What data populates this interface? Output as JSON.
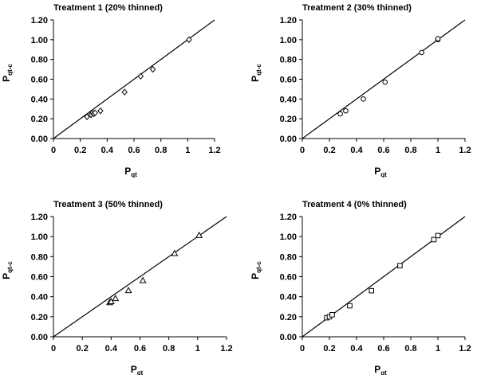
{
  "chart_data": [
    {
      "type": "scatter",
      "title": "Treatment 1 (20% thinned)",
      "xlabel": "P",
      "xlabel_sub": "qt",
      "ylabel": "P",
      "ylabel_sub": "qt-c",
      "xlim": [
        0,
        1.2
      ],
      "ylim": [
        0,
        1.2
      ],
      "xticks": [
        "0",
        "0.2",
        "0.4",
        "0.6",
        "0.8",
        "1",
        "1.2"
      ],
      "yticks": [
        "0.00",
        "0.20",
        "0.40",
        "0.60",
        "0.80",
        "1.00",
        "1.20"
      ],
      "marker": "diamond",
      "reference_line": "1:1",
      "grid": false,
      "x": [
        0.25,
        0.28,
        0.29,
        0.3,
        0.31,
        0.35,
        0.53,
        0.65,
        0.74,
        1.01
      ],
      "y": [
        0.22,
        0.24,
        0.26,
        0.25,
        0.26,
        0.28,
        0.47,
        0.63,
        0.7,
        1.0
      ]
    },
    {
      "type": "scatter",
      "title": "Treatment 2 (30% thinned)",
      "xlabel": "P",
      "xlabel_sub": "qt",
      "ylabel": "P",
      "ylabel_sub": "qt-c",
      "xlim": [
        0,
        1.2
      ],
      "ylim": [
        0,
        1.2
      ],
      "xticks": [
        "0",
        "0.2",
        "0.4",
        "0.6",
        "0.8",
        "1",
        "1.2"
      ],
      "yticks": [
        "0.00",
        "0.20",
        "0.40",
        "0.60",
        "0.80",
        "1.00",
        "1.20"
      ],
      "marker": "circle",
      "reference_line": "1:1",
      "grid": false,
      "x": [
        0.28,
        0.32,
        0.45,
        0.61,
        0.88,
        1.0,
        1.0
      ],
      "y": [
        0.25,
        0.28,
        0.4,
        0.57,
        0.87,
        1.0,
        1.01
      ]
    },
    {
      "type": "scatter",
      "title": "Treatment 3 (50% thinned)",
      "xlabel": "P",
      "xlabel_sub": "qt",
      "ylabel": "P",
      "ylabel_sub": "qt-c",
      "xlim": [
        0,
        1.2
      ],
      "ylim": [
        0,
        1.2
      ],
      "xticks": [
        "0",
        "0.2",
        "0.4",
        "0.6",
        "0.8",
        "1",
        "1.2"
      ],
      "yticks": [
        "0.00",
        "0.20",
        "0.40",
        "0.60",
        "0.80",
        "1.00",
        "1.20"
      ],
      "marker": "triangle",
      "reference_line": "1:1",
      "grid": false,
      "x": [
        0.39,
        0.4,
        0.43,
        0.52,
        0.62,
        0.84,
        1.01
      ],
      "y": [
        0.34,
        0.35,
        0.38,
        0.46,
        0.56,
        0.83,
        1.01
      ]
    },
    {
      "type": "scatter",
      "title": "Treatment 4 (0% thinned)",
      "xlabel": "P",
      "xlabel_sub": "qt",
      "ylabel": "P",
      "ylabel_sub": "qt-c",
      "xlim": [
        0,
        1.2
      ],
      "ylim": [
        0,
        1.2
      ],
      "xticks": [
        "0",
        "0.2",
        "0.4",
        "0.6",
        "0.8",
        "1",
        "1.2"
      ],
      "yticks": [
        "0.00",
        "0.20",
        "0.40",
        "0.60",
        "0.80",
        "1.00",
        "1.20"
      ],
      "marker": "square",
      "reference_line": "1:1",
      "grid": false,
      "x": [
        0.18,
        0.2,
        0.22,
        0.35,
        0.51,
        0.72,
        0.97,
        1.0
      ],
      "y": [
        0.19,
        0.2,
        0.22,
        0.31,
        0.46,
        0.71,
        0.97,
        1.01
      ]
    }
  ]
}
